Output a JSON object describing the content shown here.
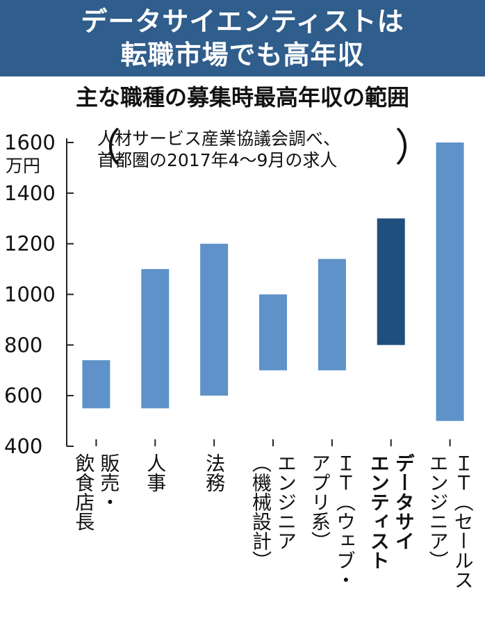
{
  "chart_data": {
    "type": "bar",
    "title_lines": [
      "データサイエンティストは",
      "転職市場でも高年収"
    ],
    "subtitle": "主な職種の募集時最高年収の範囲",
    "note_lines": [
      "人材サービス産業協議会調べ、",
      "首都圏の2017年4～9月の求人"
    ],
    "unit": "万円",
    "ylim": [
      400,
      1600
    ],
    "yticks": [
      "1600",
      "1400",
      "1200",
      "1000",
      "800",
      "600",
      "400"
    ],
    "ytick_values": [
      1600,
      1400,
      1200,
      1000,
      800,
      600,
      400
    ],
    "categories": [
      "販売・飲食店長",
      "人事",
      "法務",
      "エンジニア（機械設計）",
      "ＩＴ（ウェブ・アプリ系）",
      "データサイエンティスト",
      "ＩＴ（セールスエンジニア）"
    ],
    "category_label_columns": [
      [
        "販売・",
        "飲食店長"
      ],
      [
        "人事"
      ],
      [
        "法務"
      ],
      [
        "エンジニア",
        "（機械設計）"
      ],
      [
        "ＩＴ（ウェブ・",
        "アプリ系）"
      ],
      [
        "データサイ",
        "エンティスト"
      ],
      [
        "ＩＴ（セールス",
        "エンジニア）"
      ]
    ],
    "ranges": [
      {
        "low": 550,
        "high": 740
      },
      {
        "low": 550,
        "high": 1100
      },
      {
        "low": 600,
        "high": 1200
      },
      {
        "low": 700,
        "high": 1000
      },
      {
        "low": 700,
        "high": 1140
      },
      {
        "low": 800,
        "high": 1300
      },
      {
        "low": 500,
        "high": 1600
      }
    ],
    "highlight_index": 5,
    "colors": {
      "bar": "#5e92c9",
      "highlight_bar": "#1f4f7c",
      "banner": "#2f5d8c",
      "axis": "#222222"
    }
  }
}
